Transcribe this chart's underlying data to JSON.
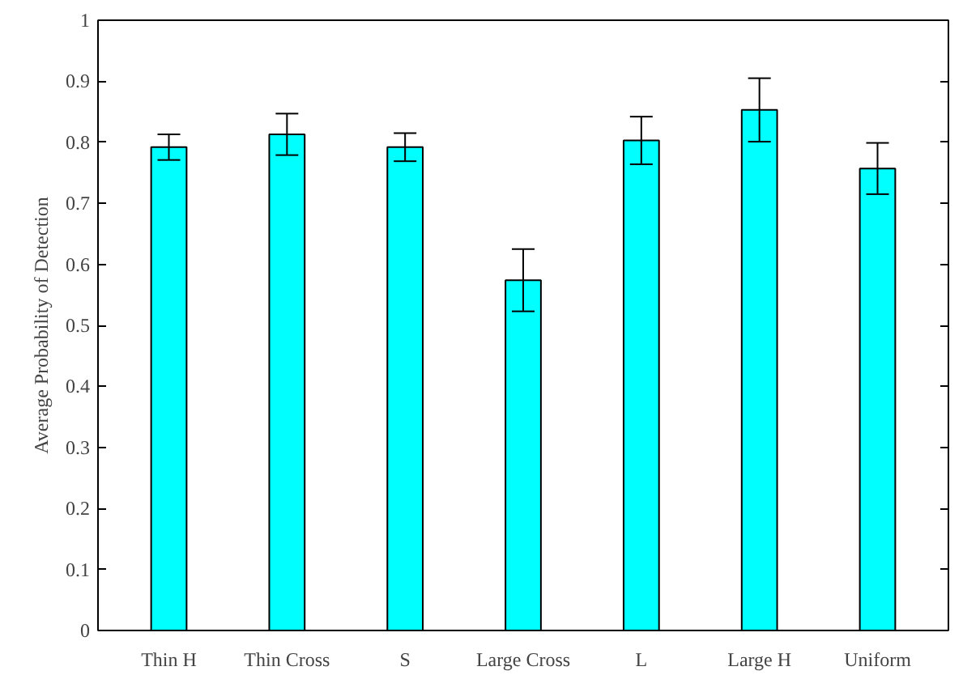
{
  "chart_data": {
    "type": "bar",
    "ylabel": "Average Probability of Detection",
    "categories": [
      "Thin H",
      "Thin Cross",
      "S",
      "Large Cross",
      "L",
      "Large H",
      "Uniform"
    ],
    "values": [
      0.792,
      0.813,
      0.792,
      0.574,
      0.803,
      0.853,
      0.757
    ],
    "errors": [
      0.021,
      0.034,
      0.023,
      0.051,
      0.039,
      0.052,
      0.042
    ],
    "color": "#00ffff",
    "ylim": [
      0,
      1
    ],
    "yticks": [
      0,
      0.1,
      0.2,
      0.3,
      0.4,
      0.5,
      0.6,
      0.7,
      0.8,
      0.9,
      1
    ],
    "grid": false
  }
}
